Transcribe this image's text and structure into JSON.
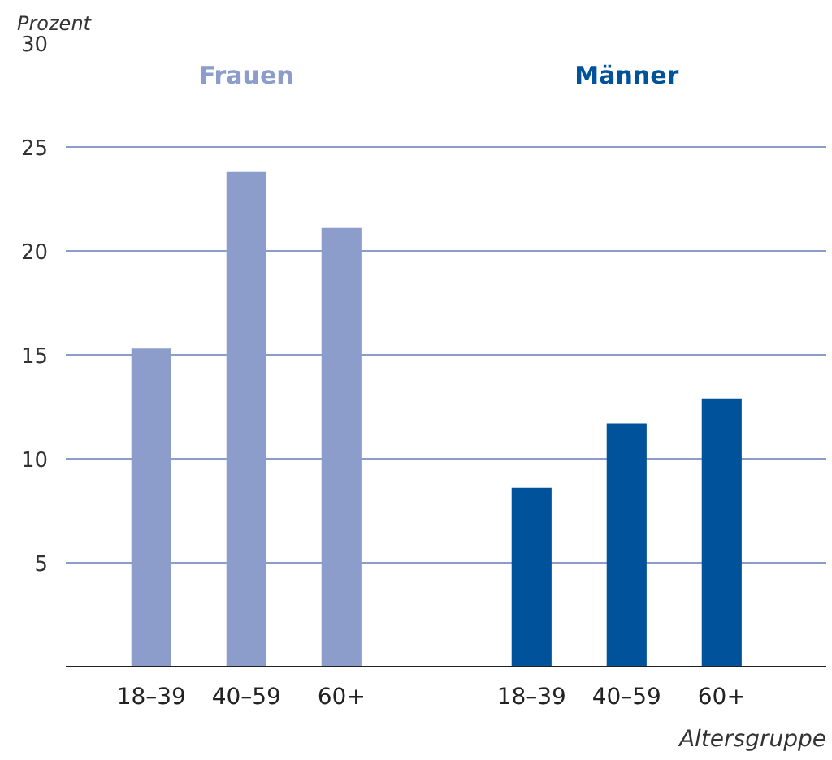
{
  "chart_data": {
    "type": "bar",
    "ylabel": "Prozent",
    "xlabel": "Altersgruppe",
    "categories": [
      "18–39",
      "40–59",
      "60+",
      "18–39",
      "40–59",
      "60+"
    ],
    "series": [
      {
        "name": "Frauen",
        "color": "#8c9dcb",
        "values": [
          15.3,
          23.8,
          21.1,
          null,
          null,
          null
        ]
      },
      {
        "name": "Männer",
        "color": "#00529b",
        "values": [
          null,
          null,
          null,
          8.6,
          11.7,
          12.9
        ]
      }
    ],
    "ylim": [
      0,
      30
    ],
    "yticks": [
      5,
      10,
      15,
      20,
      25,
      30
    ],
    "grid": "y"
  }
}
